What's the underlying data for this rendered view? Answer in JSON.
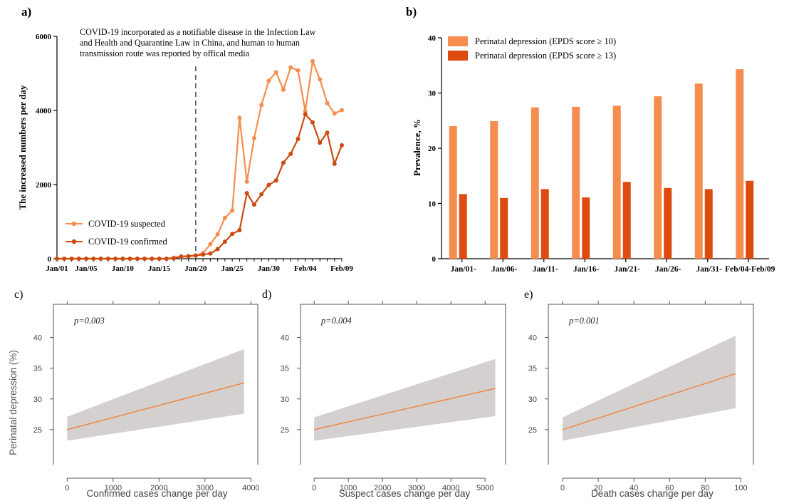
{
  "colors": {
    "suspected": "#F58D4F",
    "confirmed": "#CC4A10",
    "bar_light": "#F58D4F",
    "bar_dark": "#DE4B0F",
    "fit_line": "#F0823C",
    "ci_band": "#D4D0CF",
    "axis": "#000000",
    "axis_grey": "#555555",
    "text_grey": "#444444"
  },
  "chart_data": [
    {
      "id": "a",
      "type": "line",
      "panel_label": "a)",
      "annotation": [
        "COVID-19 incorporated as a notifiable disease in the Infection Law",
        "and Health and Quarantine Law in China, and human to human",
        "transmission route was reported by offical media"
      ],
      "ylabel": "The increased numbers per day",
      "xlabel": "",
      "ylim": [
        0,
        6000
      ],
      "yticks": [
        "0",
        "2000",
        "4000",
        "6000"
      ],
      "ytick_values": [
        0,
        2000,
        4000,
        6000
      ],
      "xtick_labels": [
        "Jan/01",
        "Jan/05",
        "Jan/10",
        "Jan/15",
        "Jan/20",
        "Jan/25",
        "Jan/30",
        "Feb/04",
        "Feb/09"
      ],
      "xtick_days": [
        1,
        5,
        10,
        15,
        20,
        25,
        30,
        35,
        40
      ],
      "x_range": [
        1,
        40
      ],
      "event_day": 20,
      "legend": [
        "COVID-19 suspected",
        "COVID-19 confirmed"
      ],
      "legend_position": "bottom-left",
      "series": [
        {
          "name": "COVID-19 suspected",
          "color_key": "suspected",
          "x_days": [
            1,
            2,
            3,
            4,
            5,
            6,
            7,
            8,
            9,
            10,
            11,
            12,
            13,
            14,
            15,
            16,
            17,
            18,
            19,
            20,
            21,
            22,
            23,
            24,
            25,
            26,
            27,
            28,
            29,
            30,
            31,
            32,
            33,
            34,
            35,
            36,
            37,
            38,
            39,
            40
          ],
          "values": [
            0,
            0,
            0,
            0,
            0,
            0,
            0,
            0,
            0,
            0,
            0,
            0,
            0,
            0,
            0,
            0,
            30,
            50,
            60,
            80,
            150,
            390,
            660,
            1100,
            1300,
            3800,
            2080,
            3250,
            4150,
            4800,
            5030,
            4560,
            5160,
            5080,
            3980,
            5330,
            4840,
            4200,
            3920,
            4010
          ]
        },
        {
          "name": "COVID-19 confirmed",
          "color_key": "confirmed",
          "x_days": [
            1,
            2,
            3,
            4,
            5,
            6,
            7,
            8,
            9,
            10,
            11,
            12,
            13,
            14,
            15,
            16,
            17,
            18,
            19,
            20,
            21,
            22,
            23,
            24,
            25,
            26,
            27,
            28,
            29,
            30,
            31,
            32,
            33,
            34,
            35,
            36,
            37,
            38,
            39,
            40
          ],
          "values": [
            0,
            0,
            0,
            0,
            0,
            0,
            0,
            0,
            0,
            0,
            0,
            0,
            0,
            0,
            0,
            0,
            10,
            60,
            70,
            90,
            110,
            140,
            260,
            460,
            670,
            770,
            1770,
            1460,
            1740,
            1990,
            2110,
            2590,
            2830,
            3230,
            3900,
            3680,
            3130,
            3400,
            2560,
            3060
          ]
        }
      ]
    },
    {
      "id": "b",
      "type": "bar",
      "panel_label": "b)",
      "ylabel": "Prevalence, %",
      "ylim": [
        0,
        40
      ],
      "yticks": [
        "0",
        "10",
        "20",
        "30",
        "40"
      ],
      "ytick_values": [
        0,
        10,
        20,
        30,
        40
      ],
      "categories": [
        "Jan/01-",
        "Jan/06-",
        "Jan/11-",
        "Jan/16-",
        "Jan/21-",
        "Jan/26-",
        "Jan/31-",
        "Feb/04-Feb/09"
      ],
      "legend_position": "top-left",
      "series": [
        {
          "name": "Perinatal depression (EPDS score ≥ 10)",
          "color_key": "bar_light",
          "values": [
            24.0,
            24.9,
            27.4,
            27.5,
            27.7,
            29.4,
            31.7,
            34.3
          ]
        },
        {
          "name": "Perinatal depression (EPDS score ≥ 13)",
          "color_key": "bar_dark",
          "values": [
            11.7,
            11.0,
            12.6,
            11.1,
            13.9,
            12.8,
            12.6,
            14.1
          ]
        }
      ]
    },
    {
      "id": "c",
      "type": "line",
      "panel_label": "c)",
      "xlabel": "Confirmed cases change per day",
      "ylabel": "Perinatal depression (%)",
      "p_label": "p=0.003",
      "xlim": [
        -300,
        4150
      ],
      "ylim": [
        19.3,
        45.4
      ],
      "xticks": [
        0,
        1000,
        2000,
        3000,
        4000
      ],
      "xtick_labels": [
        "0",
        "1000",
        "2000",
        "3000",
        "4000"
      ],
      "yticks": [
        25,
        30,
        35,
        40
      ],
      "ytick_labels": [
        "25",
        "30",
        "35",
        "40"
      ],
      "series": [
        {
          "name": "",
          "x": [
            0,
            3850
          ],
          "values": [
            25.0,
            32.6
          ],
          "ci_lower": [
            23.2,
            27.6
          ],
          "ci_upper": [
            27.1,
            38.1
          ]
        }
      ]
    },
    {
      "id": "d",
      "type": "line",
      "panel_label": "d)",
      "xlabel": "Suspect cases change per day",
      "ylabel": "",
      "p_label": "p=0.004",
      "xlim": [
        -400,
        5600
      ],
      "ylim": [
        19.3,
        45.4
      ],
      "xticks": [
        0,
        1000,
        2000,
        3000,
        4000,
        5000
      ],
      "xtick_labels": [
        "0",
        "1000",
        "2000",
        "3000",
        "4000",
        "5000"
      ],
      "yticks": [
        25,
        30,
        35,
        40
      ],
      "ytick_labels": [
        "25",
        "30",
        "35",
        "40"
      ],
      "series": [
        {
          "name": "",
          "x": [
            0,
            5300
          ],
          "values": [
            25.0,
            31.7
          ],
          "ci_lower": [
            23.2,
            27.2
          ],
          "ci_upper": [
            27.0,
            36.5
          ]
        }
      ]
    },
    {
      "id": "e",
      "type": "line",
      "panel_label": "e)",
      "xlabel": "Death cases change per day",
      "ylabel": "",
      "p_label": "p=0.001",
      "xlim": [
        -8,
        107
      ],
      "ylim": [
        19.3,
        45.4
      ],
      "xticks": [
        0,
        20,
        40,
        60,
        80,
        100
      ],
      "xtick_labels": [
        "0",
        "20",
        "40",
        "60",
        "80",
        "100"
      ],
      "yticks": [
        25,
        30,
        35,
        40
      ],
      "ytick_labels": [
        "25",
        "30",
        "35",
        "40"
      ],
      "series": [
        {
          "name": "",
          "x": [
            0,
            97
          ],
          "values": [
            25.0,
            34.1
          ],
          "ci_lower": [
            23.2,
            28.5
          ],
          "ci_upper": [
            27.0,
            40.3
          ]
        }
      ]
    }
  ]
}
